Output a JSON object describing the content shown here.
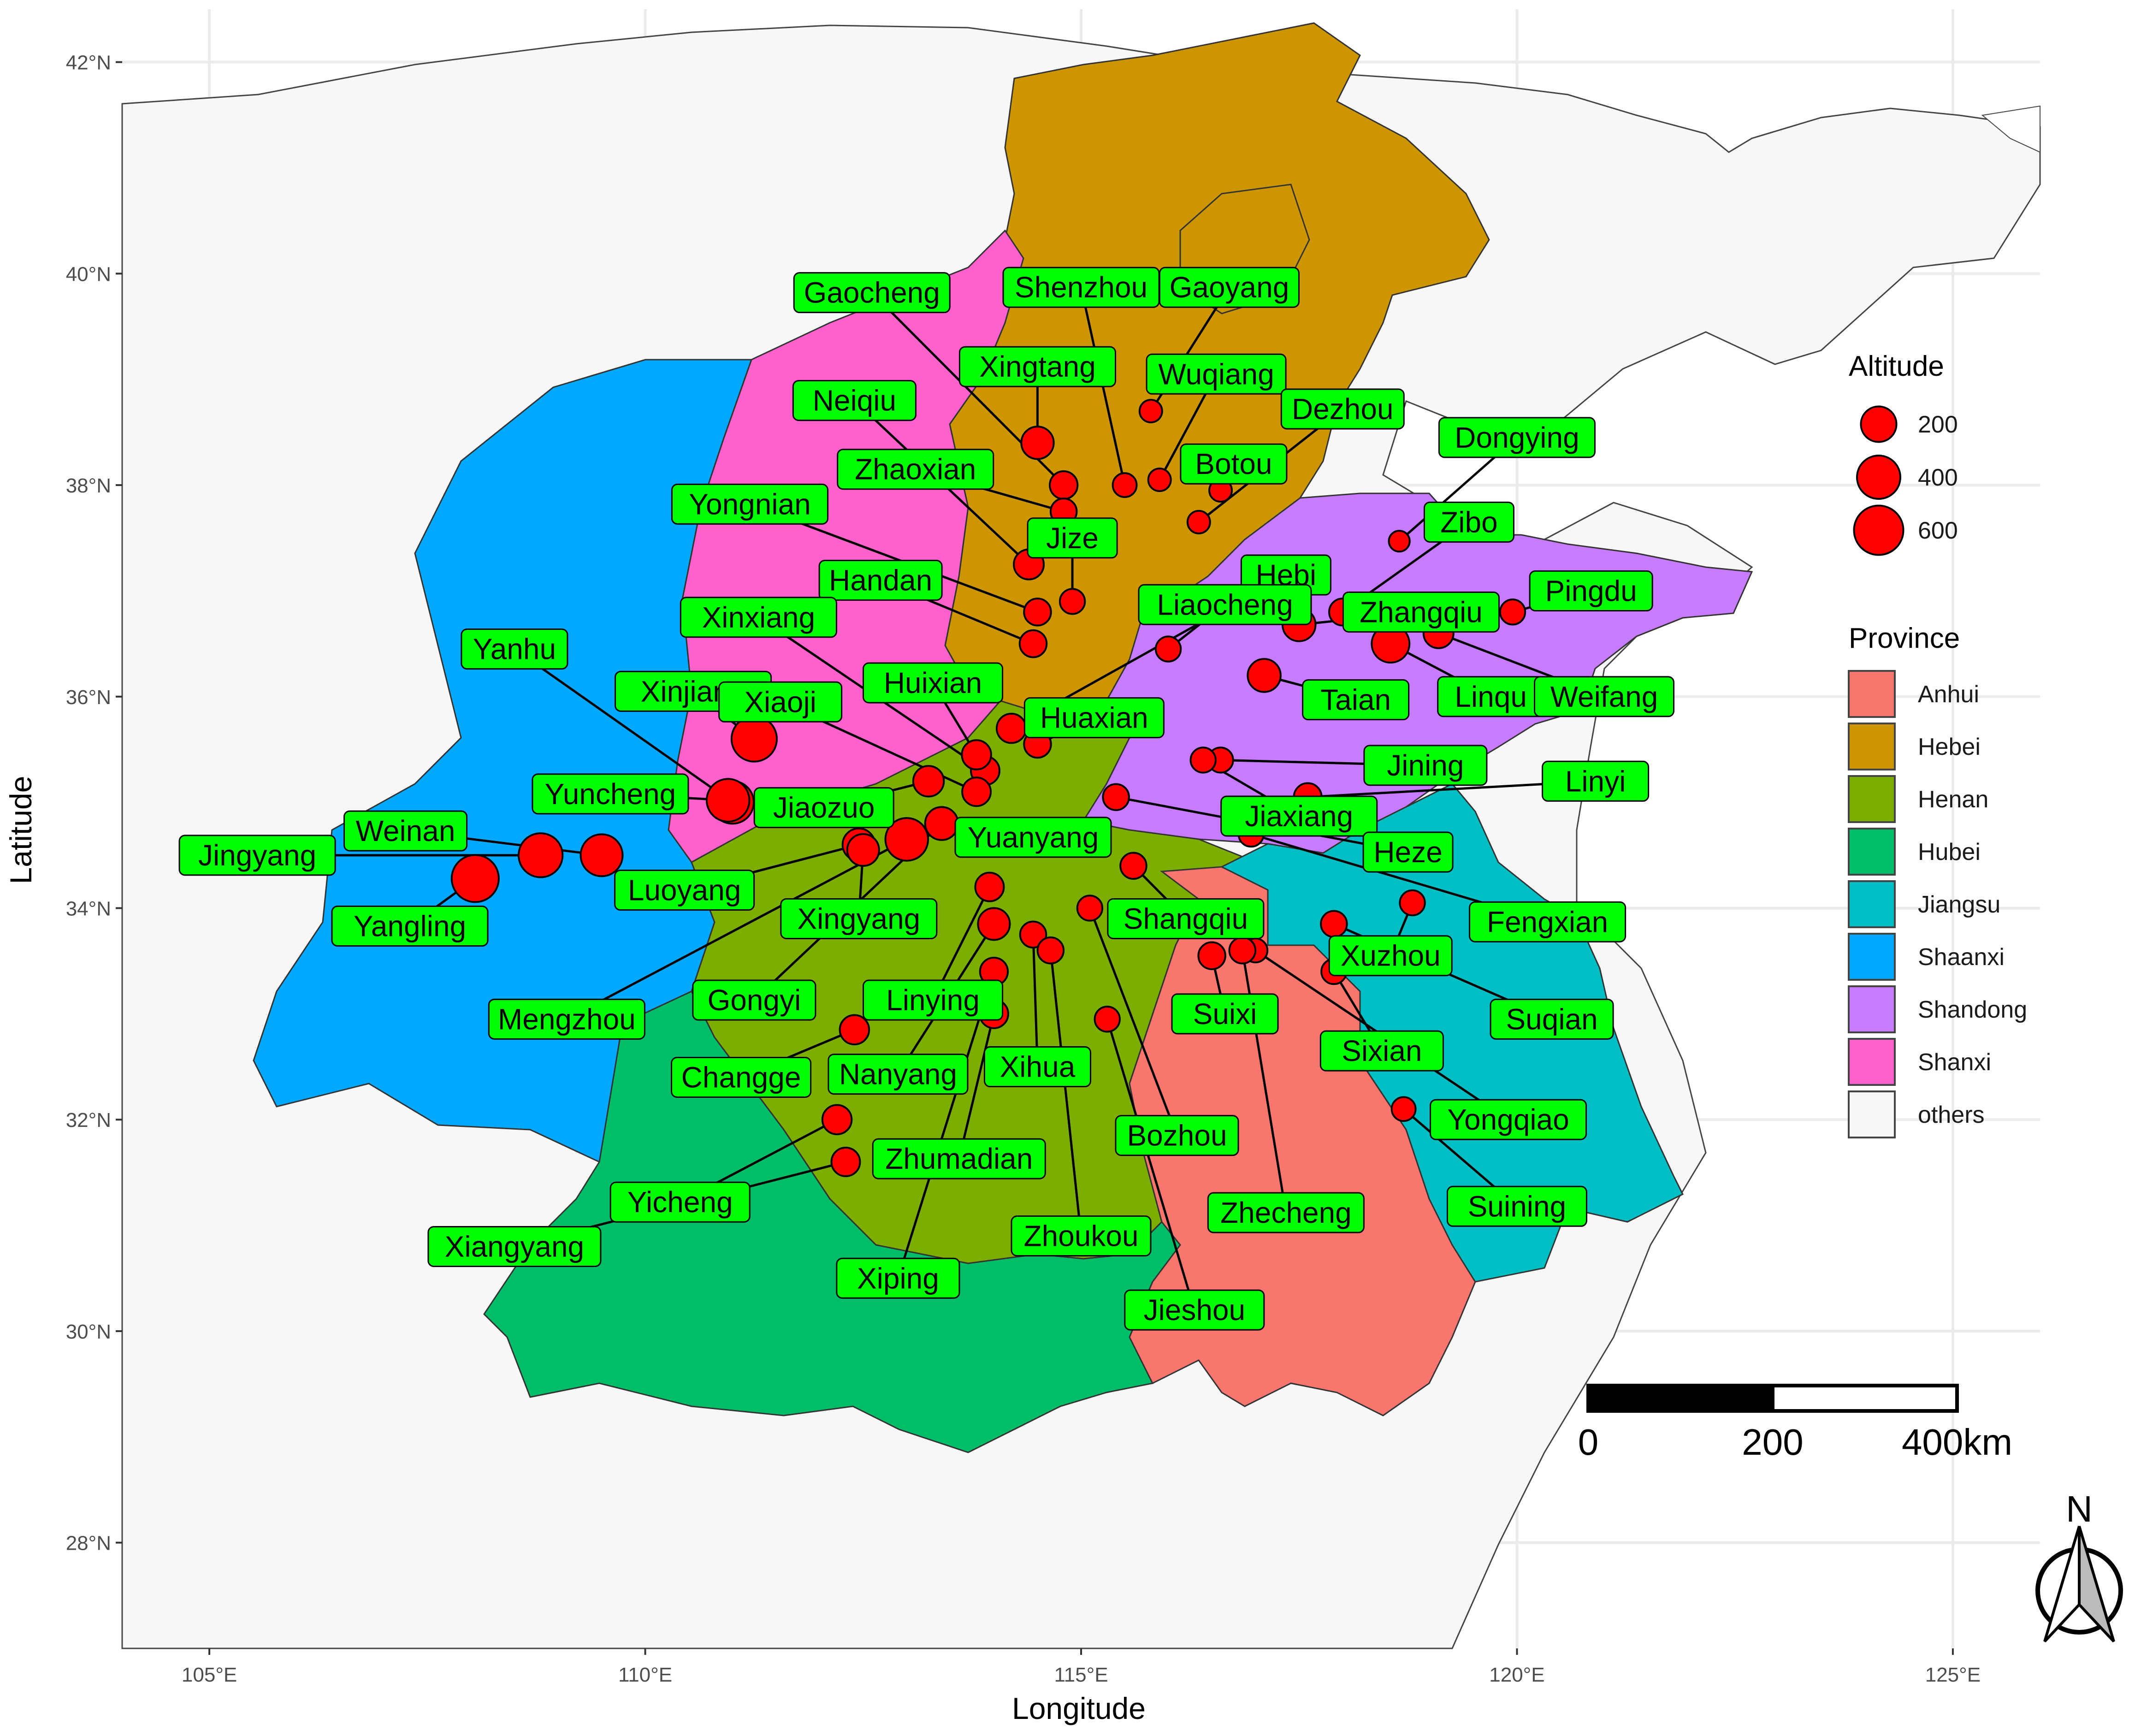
{
  "axes": {
    "x_title": "Longitude",
    "y_title": "Latitude",
    "x_ticks": [
      {
        "lon": 105,
        "label": "105°E"
      },
      {
        "lon": 110,
        "label": "110°E"
      },
      {
        "lon": 115,
        "label": "115°E"
      },
      {
        "lon": 120,
        "label": "120°E"
      },
      {
        "lon": 125,
        "label": "125°E"
      }
    ],
    "y_ticks": [
      {
        "lat": 28,
        "label": "28°N"
      },
      {
        "lat": 30,
        "label": "30°N"
      },
      {
        "lat": 32,
        "label": "32°N"
      },
      {
        "lat": 34,
        "label": "34°N"
      },
      {
        "lat": 36,
        "label": "36°N"
      },
      {
        "lat": 38,
        "label": "38°N"
      },
      {
        "lat": 40,
        "label": "40°N"
      },
      {
        "lat": 42,
        "label": "42°N"
      }
    ],
    "lon_range": [
      104,
      126
    ],
    "lat_range": [
      27,
      42.5
    ]
  },
  "provinces": [
    {
      "name": "Anhui",
      "color": "#F8766D"
    },
    {
      "name": "Hebei",
      "color": "#CD9600"
    },
    {
      "name": "Henan",
      "color": "#7CAE00"
    },
    {
      "name": "Hubei",
      "color": "#00BE67"
    },
    {
      "name": "Jiangsu",
      "color": "#00BFC4"
    },
    {
      "name": "Shaanxi",
      "color": "#00A9FF"
    },
    {
      "name": "Shandong",
      "color": "#C77CFF"
    },
    {
      "name": "Shanxi",
      "color": "#FF61CC"
    },
    {
      "name": "others",
      "color": "#F7F7F7"
    }
  ],
  "legend": {
    "altitude_title": "Altitude",
    "altitude_items": [
      {
        "value": 200,
        "label": "200"
      },
      {
        "value": 400,
        "label": "400"
      },
      {
        "value": 600,
        "label": "600"
      }
    ],
    "province_title": "Province"
  },
  "scale_bar": {
    "labels": [
      "0",
      "200",
      "400km"
    ]
  },
  "north_arrow": {
    "label": "N",
    "icon": "north-arrow-icon"
  },
  "colors": {
    "point": "#FF0000",
    "label_bg": "#00FF00",
    "water": "#FFFFFF",
    "grid": "#EBEBEB"
  },
  "cities": [
    {
      "name": "Gaocheng",
      "lon": 114.8,
      "lat": 38.0,
      "alt": 70,
      "label_lon": 112.6,
      "label_lat": 39.82
    },
    {
      "name": "Shenzhou",
      "lon": 115.5,
      "lat": 38.0,
      "alt": 30,
      "label_lon": 115.0,
      "label_lat": 39.87
    },
    {
      "name": "Gaoyang",
      "lon": 115.8,
      "lat": 38.7,
      "alt": 20,
      "label_lon": 116.7,
      "label_lat": 39.87
    },
    {
      "name": "Xingtang",
      "lon": 114.5,
      "lat": 38.4,
      "alt": 140,
      "label_lon": 114.5,
      "label_lat": 39.12
    },
    {
      "name": "Wuqiang",
      "lon": 115.9,
      "lat": 38.05,
      "alt": 20,
      "label_lon": 116.55,
      "label_lat": 39.05
    },
    {
      "name": "Neiqiu",
      "lon": 114.4,
      "lat": 37.25,
      "alt": 100,
      "label_lon": 112.4,
      "label_lat": 38.8
    },
    {
      "name": "Dezhou",
      "lon": 116.35,
      "lat": 37.65,
      "alt": 20,
      "label_lon": 118.0,
      "label_lat": 38.72
    },
    {
      "name": "Dongying",
      "lon": 118.65,
      "lat": 37.47,
      "alt": 10,
      "label_lon": 120.0,
      "label_lat": 38.45
    },
    {
      "name": "Zhaoxian",
      "lon": 114.8,
      "lat": 37.75,
      "alt": 50,
      "label_lon": 113.1,
      "label_lat": 38.15
    },
    {
      "name": "Botou",
      "lon": 116.6,
      "lat": 37.95,
      "alt": 20,
      "label_lon": 116.75,
      "label_lat": 38.2
    },
    {
      "name": "Yongnian",
      "lon": 114.5,
      "lat": 36.8,
      "alt": 60,
      "label_lon": 111.2,
      "label_lat": 37.82
    },
    {
      "name": "Jize",
      "lon": 114.9,
      "lat": 36.9,
      "alt": 40,
      "label_lon": 114.9,
      "label_lat": 37.5
    },
    {
      "name": "Zibo",
      "lon": 118.0,
      "lat": 36.8,
      "alt": 60,
      "label_lon": 119.45,
      "label_lat": 37.65
    },
    {
      "name": "Handan",
      "lon": 114.45,
      "lat": 36.5,
      "alt": 60,
      "label_lon": 112.7,
      "label_lat": 37.1
    },
    {
      "name": "Hebi",
      "lon": 114.2,
      "lat": 35.7,
      "alt": 90,
      "label_lon": 117.35,
      "label_lat": 37.15
    },
    {
      "name": "Pingdu",
      "lon": 119.95,
      "lat": 36.8,
      "alt": 40,
      "label_lon": 120.85,
      "label_lat": 37.0
    },
    {
      "name": "Liaocheng",
      "lon": 116.0,
      "lat": 36.45,
      "alt": 40,
      "label_lon": 116.65,
      "label_lat": 36.87
    },
    {
      "name": "Zhangqiu",
      "lon": 117.5,
      "lat": 36.68,
      "alt": 150,
      "label_lon": 118.9,
      "label_lat": 36.8
    },
    {
      "name": "Xinxiang",
      "lon": 113.9,
      "lat": 35.3,
      "alt": 80,
      "label_lon": 111.3,
      "label_lat": 36.75
    },
    {
      "name": "Yanhu",
      "lon": 111.0,
      "lat": 35.0,
      "alt": 380,
      "label_lon": 108.5,
      "label_lat": 36.45
    },
    {
      "name": "Linqu",
      "lon": 118.55,
      "lat": 36.5,
      "alt": 250,
      "label_lon": 119.7,
      "label_lat": 36.0
    },
    {
      "name": "Weifang",
      "lon": 119.1,
      "lat": 36.6,
      "alt": 100,
      "label_lon": 121.0,
      "label_lat": 36.0
    },
    {
      "name": "Xinjiang",
      "lon": 111.25,
      "lat": 35.6,
      "alt": 460,
      "label_lon": 110.55,
      "label_lat": 36.05
    },
    {
      "name": "Huixian",
      "lon": 113.8,
      "lat": 35.45,
      "alt": 90,
      "label_lon": 113.3,
      "label_lat": 36.13
    },
    {
      "name": "Taian",
      "lon": 117.1,
      "lat": 36.2,
      "alt": 150,
      "label_lon": 118.15,
      "label_lat": 35.97
    },
    {
      "name": "Xiaoji",
      "lon": 113.8,
      "lat": 35.1,
      "alt": 80,
      "label_lon": 111.55,
      "label_lat": 35.95
    },
    {
      "name": "Huaxian",
      "lon": 114.5,
      "lat": 35.55,
      "alt": 60,
      "label_lon": 115.15,
      "label_lat": 35.8
    },
    {
      "name": "Jining",
      "lon": 116.6,
      "lat": 35.4,
      "alt": 40,
      "label_lon": 118.95,
      "label_lat": 35.35
    },
    {
      "name": "Linyi",
      "lon": 117.6,
      "lat": 35.05,
      "alt": 70,
      "label_lon": 120.9,
      "label_lat": 35.2
    },
    {
      "name": "Yuncheng",
      "lon": 110.95,
      "lat": 35.02,
      "alt": 380,
      "label_lon": 109.6,
      "label_lat": 35.08
    },
    {
      "name": "Jiaozuo",
      "lon": 113.25,
      "lat": 35.2,
      "alt": 110,
      "label_lon": 112.05,
      "label_lat": 34.95
    },
    {
      "name": "Jiaxiang",
      "lon": 116.4,
      "lat": 35.4,
      "alt": 40,
      "label_lon": 117.5,
      "label_lat": 34.87
    },
    {
      "name": "Weinan",
      "lon": 109.5,
      "lat": 34.5,
      "alt": 360,
      "label_lon": 107.25,
      "label_lat": 34.73
    },
    {
      "name": "Jingyang",
      "lon": 108.8,
      "lat": 34.5,
      "alt": 420,
      "label_lon": 105.55,
      "label_lat": 34.5
    },
    {
      "name": "Yuanyang",
      "lon": 113.9,
      "lat": 34.7,
      "alt": 80,
      "label_lon": 114.45,
      "label_lat": 34.67
    },
    {
      "name": "Heze",
      "lon": 115.4,
      "lat": 35.05,
      "alt": 50,
      "label_lon": 118.75,
      "label_lat": 34.53
    },
    {
      "name": "Luoyang",
      "lon": 112.45,
      "lat": 34.6,
      "alt": 140,
      "label_lon": 110.45,
      "label_lat": 34.17
    },
    {
      "name": "Yangling",
      "lon": 108.05,
      "lat": 34.28,
      "alt": 520,
      "label_lon": 107.3,
      "label_lat": 33.83
    },
    {
      "name": "Xingyang",
      "lon": 112.5,
      "lat": 34.55,
      "alt": 130,
      "label_lon": 112.45,
      "label_lat": 33.9
    },
    {
      "name": "Shangqiu",
      "lon": 115.6,
      "lat": 34.4,
      "alt": 50,
      "label_lon": 116.2,
      "label_lat": 33.9
    },
    {
      "name": "Fengxian",
      "lon": 116.95,
      "lat": 34.7,
      "alt": 40,
      "label_lon": 120.35,
      "label_lat": 33.87
    },
    {
      "name": "Xuzhou",
      "lon": 118.8,
      "lat": 34.05,
      "alt": 40,
      "label_lon": 118.55,
      "label_lat": 33.55
    },
    {
      "name": "Mengzhou",
      "lon": 113.0,
      "lat": 34.65,
      "alt": 380,
      "label_lon": 109.1,
      "label_lat": 32.95
    },
    {
      "name": "Gongyi",
      "lon": 113.4,
      "lat": 34.8,
      "alt": 150,
      "label_lon": 111.25,
      "label_lat": 33.13
    },
    {
      "name": "Linying",
      "lon": 113.95,
      "lat": 34.2,
      "alt": 80,
      "label_lon": 113.3,
      "label_lat": 33.13
    },
    {
      "name": "Suixi",
      "lon": 116.5,
      "lat": 33.55,
      "alt": 60,
      "label_lon": 116.65,
      "label_lat": 33.0
    },
    {
      "name": "Suqian",
      "lon": 117.9,
      "lat": 33.85,
      "alt": 50,
      "label_lon": 120.4,
      "label_lat": 32.95
    },
    {
      "name": "Sixian",
      "lon": 117.9,
      "lat": 33.4,
      "alt": 40,
      "label_lon": 118.45,
      "label_lat": 32.65
    },
    {
      "name": "Changge",
      "lon": 112.4,
      "lat": 32.85,
      "alt": 90,
      "label_lon": 111.1,
      "label_lat": 32.4
    },
    {
      "name": "Nanyang",
      "lon": 114.0,
      "lat": 33.85,
      "alt": 130,
      "label_lon": 112.9,
      "label_lat": 32.43
    },
    {
      "name": "Xihua",
      "lon": 114.45,
      "lat": 33.75,
      "alt": 50,
      "label_lon": 114.5,
      "label_lat": 32.5
    },
    {
      "name": "Yongqiao",
      "lon": 117.0,
      "lat": 33.6,
      "alt": 30,
      "label_lon": 119.9,
      "label_lat": 32.0
    },
    {
      "name": "Bozhou",
      "lon": 115.1,
      "lat": 34.0,
      "alt": 40,
      "label_lon": 116.1,
      "label_lat": 31.85
    },
    {
      "name": "Zhumadian",
      "lon": 114.0,
      "lat": 33.0,
      "alt": 80,
      "label_lon": 113.6,
      "label_lat": 31.63
    },
    {
      "name": "Suining",
      "lon": 118.7,
      "lat": 32.1,
      "alt": 30,
      "label_lon": 120.0,
      "label_lat": 31.18
    },
    {
      "name": "Yicheng",
      "lon": 112.2,
      "lat": 32.0,
      "alt": 90,
      "label_lon": 110.4,
      "label_lat": 31.22
    },
    {
      "name": "Zhecheng",
      "lon": 116.85,
      "lat": 33.6,
      "alt": 50,
      "label_lon": 117.35,
      "label_lat": 31.12
    },
    {
      "name": "Zhoukou",
      "lon": 114.65,
      "lat": 33.6,
      "alt": 50,
      "label_lon": 115.0,
      "label_lat": 30.9
    },
    {
      "name": "Xiangyang",
      "lon": 112.3,
      "lat": 31.6,
      "alt": 80,
      "label_lon": 108.5,
      "label_lat": 30.8
    },
    {
      "name": "Xiping",
      "lon": 114.0,
      "lat": 33.4,
      "alt": 70,
      "label_lon": 112.9,
      "label_lat": 30.5
    },
    {
      "name": "Jieshou",
      "lon": 115.3,
      "lat": 32.95,
      "alt": 40,
      "label_lon": 116.3,
      "label_lat": 30.2
    }
  ]
}
